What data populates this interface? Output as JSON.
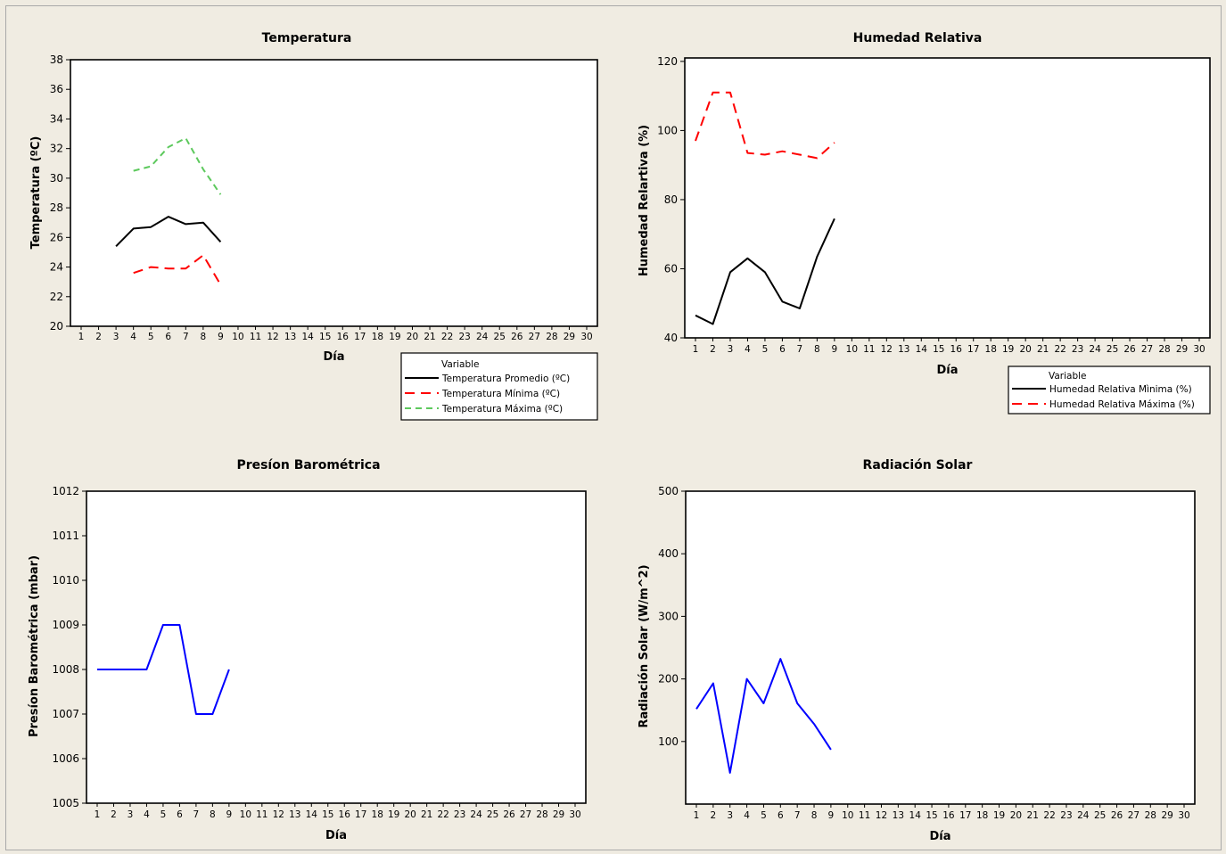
{
  "chart_data": [
    {
      "type": "line",
      "title": "Temperatura",
      "xlabel": "Día",
      "ylabel": "Temperatura (ºC)",
      "xlim": [
        1,
        30
      ],
      "ylim": [
        20,
        38
      ],
      "yticks": [
        20,
        22,
        24,
        26,
        28,
        30,
        32,
        34,
        36,
        38
      ],
      "xticks": [
        1,
        2,
        3,
        4,
        5,
        6,
        7,
        8,
        9,
        10,
        11,
        12,
        13,
        14,
        15,
        16,
        17,
        18,
        19,
        20,
        21,
        22,
        23,
        24,
        25,
        26,
        27,
        28,
        29,
        30
      ],
      "legend_title": "Variable",
      "legend_position": "bottom-right-outside",
      "series": [
        {
          "name": "Temperatura Promedio (ºC)",
          "color": "#000000",
          "dash": "solid",
          "x": [
            3,
            4,
            5,
            6,
            7,
            8,
            9
          ],
          "y": [
            25.4,
            26.6,
            26.7,
            27.4,
            26.9,
            27.0,
            25.7
          ]
        },
        {
          "name": "Temperatura Mínima (ºC)",
          "color": "#ff0000",
          "dash": "long",
          "x": [
            4,
            5,
            6,
            7,
            8,
            9
          ],
          "y": [
            23.6,
            24.0,
            23.9,
            23.9,
            24.8,
            22.8
          ]
        },
        {
          "name": "Temperatura Máxima (ºC)",
          "color": "#5dc95d",
          "dash": "medium",
          "x": [
            4,
            5,
            6,
            7,
            8,
            9
          ],
          "y": [
            30.5,
            30.8,
            32.1,
            32.7,
            30.6,
            28.9
          ]
        }
      ]
    },
    {
      "type": "line",
      "title": "Humedad Relativa",
      "xlabel": "Día",
      "ylabel": "Humedad Relartiva (%)",
      "xlim": [
        1,
        30
      ],
      "ylim": [
        40,
        121
      ],
      "yticks": [
        40,
        60,
        80,
        100,
        120
      ],
      "xticks": [
        1,
        2,
        3,
        4,
        5,
        6,
        7,
        8,
        9,
        10,
        11,
        12,
        13,
        14,
        15,
        16,
        17,
        18,
        19,
        20,
        21,
        22,
        23,
        24,
        25,
        26,
        27,
        28,
        29,
        30
      ],
      "legend_title": "Variable",
      "legend_position": "bottom-right-outside",
      "series": [
        {
          "name": "Humedad Relativa Mìnima (%)",
          "color": "#000000",
          "dash": "solid",
          "x": [
            1,
            2,
            3,
            4,
            5,
            6,
            7,
            8,
            9
          ],
          "y": [
            46.5,
            44.0,
            59.0,
            63.0,
            59.0,
            50.5,
            48.5,
            63.5,
            74.5
          ]
        },
        {
          "name": "Humedad Relativa Máxima (%)",
          "color": "#ff0000",
          "dash": "long",
          "x": [
            1,
            2,
            3,
            4,
            5,
            6,
            7,
            8,
            9
          ],
          "y": [
            97.0,
            111.0,
            111.0,
            93.5,
            93.0,
            94.0,
            93.0,
            92.0,
            96.5
          ]
        }
      ]
    },
    {
      "type": "line",
      "title": "Presíon Barométrica",
      "xlabel": "Día",
      "ylabel": "Presíon Barométrica (mbar)",
      "xlim": [
        1,
        30
      ],
      "ylim": [
        1005,
        1012
      ],
      "yticks": [
        1005,
        1006,
        1007,
        1008,
        1009,
        1010,
        1011,
        1012
      ],
      "xticks": [
        1,
        2,
        3,
        4,
        5,
        6,
        7,
        8,
        9,
        10,
        11,
        12,
        13,
        14,
        15,
        16,
        17,
        18,
        19,
        20,
        21,
        22,
        23,
        24,
        25,
        26,
        27,
        28,
        29,
        30
      ],
      "series": [
        {
          "color": "#0000ff",
          "dash": "solid",
          "x": [
            1,
            2,
            3,
            4,
            5,
            6,
            7,
            8,
            9
          ],
          "y": [
            1008,
            1008,
            1008,
            1008,
            1009,
            1009,
            1007,
            1007,
            1008
          ]
        }
      ]
    },
    {
      "type": "line",
      "title": "Radiación Solar",
      "xlabel": "Día",
      "ylabel": "Radiación Solar (W/m^2)",
      "xlim": [
        1,
        30
      ],
      "ylim": [
        0,
        500
      ],
      "yticks": [
        100,
        200,
        300,
        400,
        500
      ],
      "xticks": [
        1,
        2,
        3,
        4,
        5,
        6,
        7,
        8,
        9,
        10,
        11,
        12,
        13,
        14,
        15,
        16,
        17,
        18,
        19,
        20,
        21,
        22,
        23,
        24,
        25,
        26,
        27,
        28,
        29,
        30
      ],
      "series": [
        {
          "color": "#0000ff",
          "dash": "solid",
          "x": [
            1,
            2,
            3,
            4,
            5,
            6,
            7,
            8,
            9
          ],
          "y": [
            152,
            193,
            50,
            200,
            161,
            232,
            161,
            128,
            87
          ]
        }
      ]
    }
  ]
}
